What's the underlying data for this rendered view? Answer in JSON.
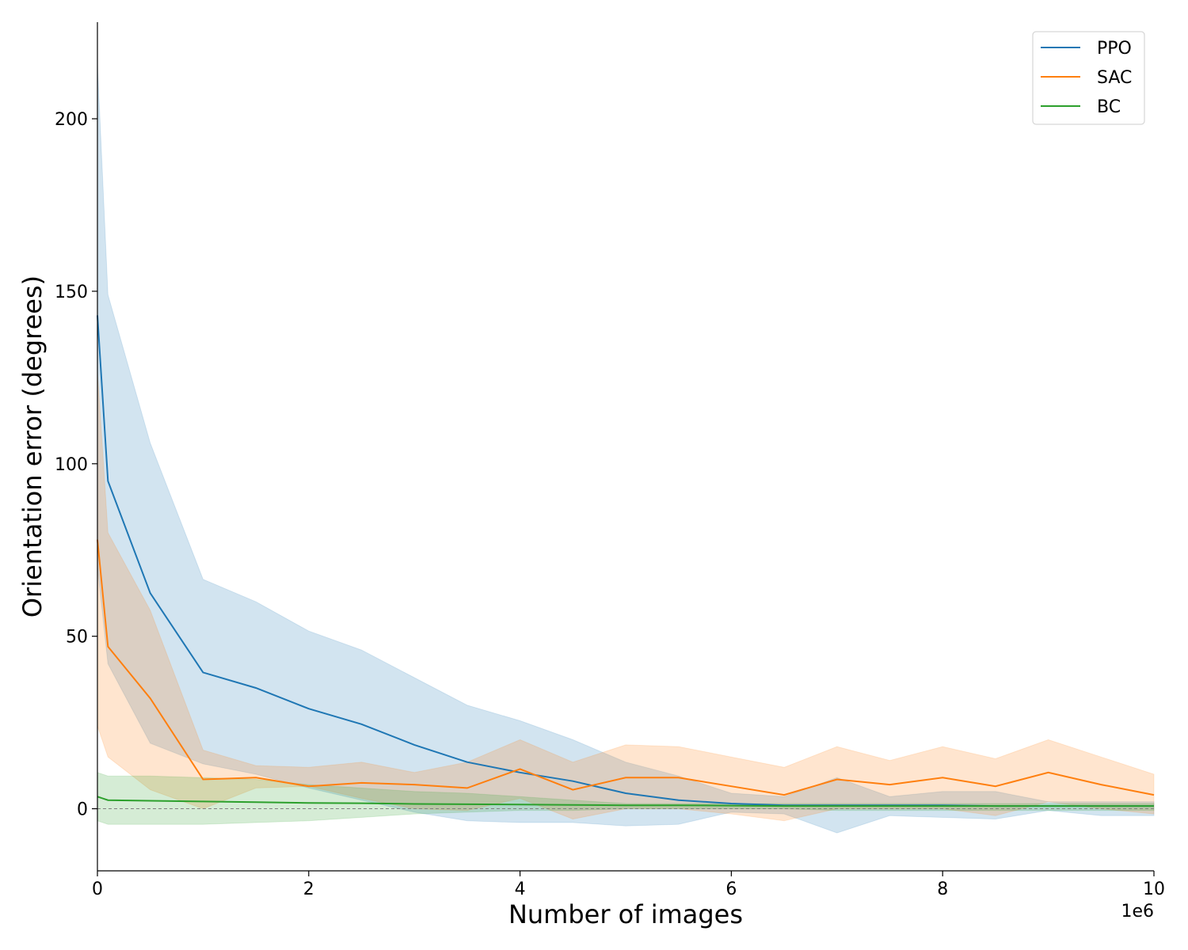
{
  "chart_data": {
    "type": "line",
    "xlabel": "Number of images",
    "ylabel": "Orientation error (degrees)",
    "x_offset_text": "1e6",
    "xlim": [
      0,
      10000000
    ],
    "ylim": [
      -18,
      228
    ],
    "x_ticks": [
      0,
      2000000,
      4000000,
      6000000,
      8000000,
      10000000
    ],
    "x_tick_labels": [
      "0",
      "2",
      "4",
      "6",
      "8",
      "10"
    ],
    "y_ticks": [
      0,
      50,
      100,
      150,
      200
    ],
    "y_tick_labels": [
      "0",
      "50",
      "100",
      "150",
      "200"
    ],
    "grid": false,
    "legend_placement": "top-right",
    "reference_line": {
      "y": 0,
      "style": "dashed",
      "color": "#808080"
    },
    "x": [
      0,
      100000,
      500000,
      1000000,
      1500000,
      2000000,
      2500000,
      3000000,
      3500000,
      4000000,
      4500000,
      5000000,
      5500000,
      6000000,
      6500000,
      7000000,
      7500000,
      8000000,
      8500000,
      9000000,
      9500000,
      10000000
    ],
    "series": [
      {
        "name": "PPO",
        "color": "#1f77b4",
        "values": [
          143,
          95,
          62.5,
          39.5,
          35,
          29,
          24.5,
          18.5,
          13.5,
          10.5,
          8,
          4.5,
          2.5,
          1.5,
          1,
          1,
          1,
          1,
          0.8,
          0.8,
          0.8,
          0.8
        ],
        "lower": [
          70,
          42,
          19,
          13,
          10,
          6,
          2.5,
          -1,
          -3.5,
          -4,
          -4,
          -5,
          -4.5,
          -1,
          -1.5,
          -7,
          -2,
          -2.5,
          -3,
          -0.5,
          -2,
          -2
        ],
        "upper": [
          216,
          149,
          106,
          66.5,
          60,
          51.5,
          46,
          38,
          30,
          25.5,
          20,
          13.5,
          9.5,
          4.5,
          3.5,
          9,
          3.5,
          5,
          5,
          2,
          2,
          2
        ]
      },
      {
        "name": "SAC",
        "color": "#ff7f0e",
        "values": [
          78,
          47,
          32,
          8.5,
          9,
          6.5,
          7.5,
          7,
          6,
          11.5,
          5.5,
          9,
          9,
          6.5,
          4,
          8.5,
          7,
          9,
          6.5,
          10.5,
          7,
          4
        ],
        "lower": [
          24,
          15,
          5.5,
          0,
          6,
          6.5,
          3,
          0,
          -0.5,
          3,
          -3,
          0,
          0,
          -1.5,
          -3.5,
          0,
          0,
          0,
          -2,
          2,
          0,
          -1.5
        ],
        "upper": [
          127,
          80,
          57.5,
          17,
          12.5,
          12,
          13.5,
          10.5,
          13.5,
          20,
          13.5,
          18.5,
          18,
          15,
          12,
          18,
          14,
          18,
          14.5,
          20,
          15,
          10
        ]
      },
      {
        "name": "BC",
        "color": "#2ca02c",
        "values": [
          3.5,
          2.5,
          2.3,
          2.1,
          1.9,
          1.7,
          1.6,
          1.4,
          1.3,
          1.2,
          1.1,
          1.0,
          1.0,
          0.9,
          0.8,
          0.8,
          0.8,
          0.8,
          0.8,
          0.8,
          0.8,
          0.8
        ],
        "lower": [
          -3.5,
          -4.5,
          -4.5,
          -4.5,
          -4,
          -3.5,
          -2.5,
          -1.5,
          -1,
          -0.5,
          -0.5,
          0,
          0,
          0,
          0,
          -0.5,
          -0.5,
          -0.5,
          -0.5,
          -0.5,
          -0.5,
          -0.5
        ],
        "upper": [
          10.5,
          9.5,
          9.5,
          9,
          8.5,
          7,
          6,
          5,
          4.5,
          3.5,
          2.5,
          1.5,
          1.5,
          1.5,
          1.5,
          1.5,
          1.5,
          1.5,
          1.5,
          1.5,
          1.5,
          1.5
        ]
      }
    ]
  }
}
